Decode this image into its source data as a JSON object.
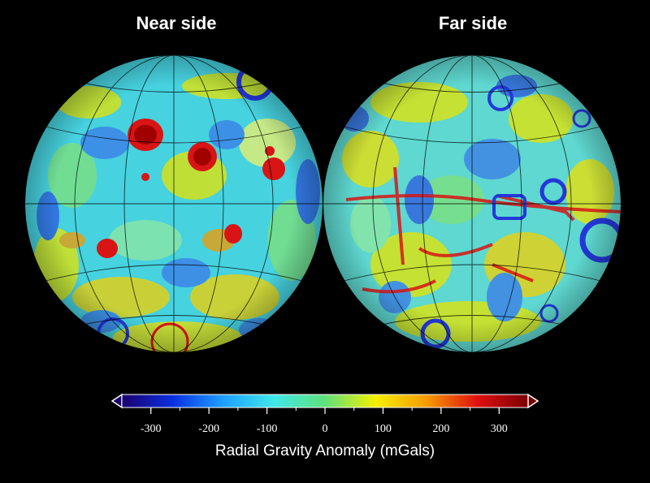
{
  "titles": {
    "near": "Near side",
    "far": "Far side"
  },
  "colorbar": {
    "label": "Radial Gravity Anomaly (mGals)",
    "min": -350,
    "max": 350,
    "ticks": [
      {
        "value": -300,
        "label": "-300"
      },
      {
        "value": -200,
        "label": "-200"
      },
      {
        "value": -100,
        "label": "-100"
      },
      {
        "value": 0,
        "label": "0"
      },
      {
        "value": 100,
        "label": "100"
      },
      {
        "value": 200,
        "label": "200"
      },
      {
        "value": 300,
        "label": "300"
      }
    ],
    "colors": [
      "#1a006e",
      "#0a2fe0",
      "#1ea0ff",
      "#40e8e8",
      "#5fe07a",
      "#f5f000",
      "#f59a00",
      "#e01010",
      "#7a0000"
    ]
  },
  "map_colors": {
    "background": "#46d2df",
    "positive": "#d81414",
    "strong_positive": "#c40000",
    "negative": "#2438d8",
    "weak_positive": "#e8e400"
  }
}
